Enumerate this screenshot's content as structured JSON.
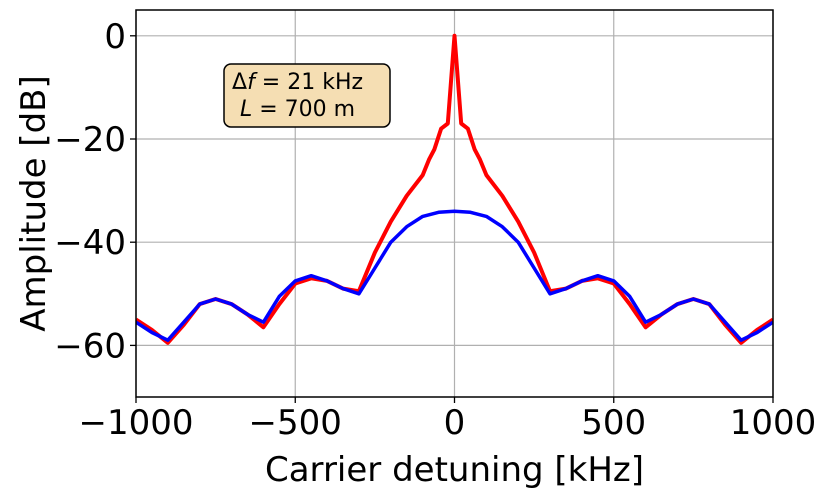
{
  "chart_data": {
    "type": "line",
    "xlabel": "Carrier detuning [kHz]",
    "ylabel": "Amplitude [dB]",
    "xlim": [
      -1000,
      1000
    ],
    "ylim": [
      -70,
      5
    ],
    "xticks": [
      -1000,
      -500,
      0,
      500,
      1000
    ],
    "yticks": [
      0,
      -20,
      -40,
      -60
    ],
    "xtick_labels": [
      "−1000",
      "−500",
      "0",
      "500",
      "1000"
    ],
    "ytick_labels": [
      "0",
      "−20",
      "−40",
      "−60"
    ],
    "grid": true,
    "annotation": {
      "line1": "Δf = 21 kHz",
      "line1_prefix": "Δ",
      "line1_italic": "f",
      "line1_suffix": " = 21 kHz",
      "line2_italic": "L",
      "line2_suffix": " = 700 m",
      "box_color": "#f5deb3"
    },
    "series": [
      {
        "color": "#ff0000",
        "x": [
          -1000,
          -950,
          -900,
          -850,
          -800,
          -750,
          -700,
          -650,
          -600,
          -550,
          -500,
          -450,
          -400,
          -350,
          -300,
          -250,
          -200,
          -150,
          -100,
          -80,
          -63,
          -42,
          -21,
          0,
          21,
          42,
          63,
          80,
          100,
          150,
          200,
          250,
          300,
          350,
          400,
          450,
          500,
          550,
          600,
          650,
          700,
          750,
          800,
          850,
          900,
          950,
          1000
        ],
        "y": [
          -55,
          -57,
          -59.5,
          -56,
          -52,
          -51,
          -52,
          -54,
          -56.5,
          -52,
          -48,
          -47,
          -47.5,
          -49,
          -49.5,
          -42,
          -36,
          -31,
          -27,
          -24,
          -22,
          -18,
          -17,
          0,
          -17,
          -18,
          -22,
          -24,
          -27,
          -31,
          -36,
          -42,
          -49.5,
          -49,
          -47.5,
          -47,
          -48,
          -52,
          -56.5,
          -54,
          -52,
          -51,
          -52,
          -56,
          -59.5,
          -57,
          -55
        ]
      },
      {
        "color": "#0000ff",
        "x": [
          -1000,
          -950,
          -900,
          -850,
          -800,
          -750,
          -700,
          -650,
          -600,
          -550,
          -500,
          -450,
          -400,
          -350,
          -300,
          -250,
          -200,
          -150,
          -100,
          -50,
          0,
          50,
          100,
          150,
          200,
          250,
          300,
          350,
          400,
          450,
          500,
          550,
          600,
          650,
          700,
          750,
          800,
          850,
          900,
          950,
          1000
        ],
        "y": [
          -55.5,
          -57.5,
          -59,
          -55.5,
          -52,
          -51,
          -52,
          -54,
          -55.5,
          -50.5,
          -47.5,
          -46.5,
          -47.5,
          -49,
          -50,
          -45,
          -40,
          -37,
          -35,
          -34.2,
          -34,
          -34.2,
          -35,
          -37,
          -40,
          -45,
          -50,
          -49,
          -47.5,
          -46.5,
          -47.5,
          -50.5,
          -55.5,
          -54,
          -52,
          -51,
          -52,
          -55.5,
          -59,
          -57.5,
          -55.5
        ]
      }
    ]
  }
}
